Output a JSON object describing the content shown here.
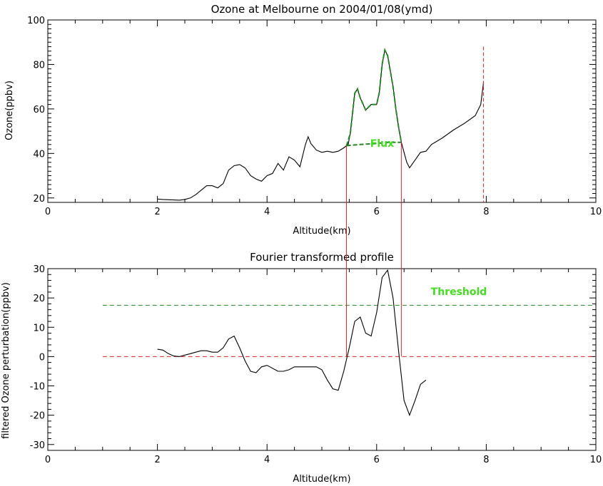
{
  "chart_data": [
    {
      "type": "line",
      "title": "Ozone at Melbourne on 2004/01/08(ymd)",
      "xlabel": "Altitude(km)",
      "ylabel": "Ozone(ppbv)",
      "xlim": [
        0,
        10
      ],
      "ylim": [
        18,
        100
      ],
      "xticks": [
        0,
        2,
        4,
        6,
        8,
        10
      ],
      "yticks": [
        20,
        40,
        60,
        80,
        100
      ],
      "annotation": {
        "text": "Flux",
        "x": 6.1,
        "y": 43,
        "color": "#44dd22"
      },
      "series": [
        {
          "role": "profile",
          "color": "#000000",
          "dash": "none",
          "x": [
            2.0,
            2.1,
            2.2,
            2.3,
            2.4,
            2.5,
            2.6,
            2.7,
            2.8,
            2.9,
            3.0,
            3.1,
            3.2,
            3.3,
            3.4,
            3.5,
            3.6,
            3.7,
            3.8,
            3.9,
            4.0,
            4.1,
            4.2,
            4.3,
            4.4,
            4.5,
            4.6,
            4.7,
            4.75,
            4.8,
            4.9,
            5.0,
            5.1,
            5.2,
            5.3,
            5.4,
            5.48,
            5.52,
            5.6,
            5.65,
            5.7,
            5.8,
            5.9,
            6.0,
            6.05,
            6.1,
            6.15,
            6.2,
            6.3,
            6.35,
            6.4,
            6.45,
            6.55,
            6.6,
            6.7,
            6.8,
            6.9,
            7.0,
            7.2,
            7.4,
            7.6,
            7.8,
            7.9,
            7.95
          ],
          "y": [
            19.5,
            19.3,
            19.2,
            19.1,
            19.0,
            19.3,
            20.0,
            21.5,
            23.5,
            25.5,
            25.5,
            24.5,
            26.5,
            32.5,
            34.5,
            35.0,
            33.5,
            30.0,
            28.5,
            27.5,
            30.0,
            31.0,
            35.5,
            32.5,
            38.5,
            37.0,
            34.0,
            44.0,
            47.5,
            44.5,
            41.5,
            40.5,
            41.0,
            40.5,
            41.0,
            42.5,
            44.0,
            49.0,
            67.0,
            69.0,
            65.0,
            59.5,
            62.0,
            62.0,
            67.5,
            80.0,
            86.5,
            84.0,
            70.0,
            60.0,
            52.0,
            45.0,
            36.0,
            33.5,
            37.0,
            40.5,
            41.0,
            44.0,
            47.0,
            50.5,
            53.5,
            57.0,
            62.0,
            72.0
          ]
        },
        {
          "role": "flux-outline",
          "color": "#228822",
          "dash": "6,3",
          "x": [
            5.45,
            5.52,
            5.6,
            5.65,
            5.7,
            5.8,
            5.9,
            6.0,
            6.05,
            6.1,
            6.15,
            6.2,
            6.3,
            6.35,
            6.4,
            6.45
          ],
          "y": [
            43.5,
            49.0,
            67.0,
            69.0,
            65.0,
            59.5,
            62.0,
            62.0,
            67.5,
            80.0,
            86.5,
            84.0,
            70.0,
            60.0,
            52.0,
            45.0
          ]
        },
        {
          "role": "flux-base",
          "color": "#228822",
          "dash": "6,3",
          "x": [
            5.45,
            5.7,
            6.0,
            6.2,
            6.45
          ],
          "y": [
            43.5,
            44.0,
            44.5,
            45.0,
            45.0
          ]
        }
      ],
      "vlines": [
        {
          "x": 5.45,
          "y0": 18,
          "y1": 43.5,
          "color": "#dd2222",
          "dash": "none"
        },
        {
          "x": 6.45,
          "y0": 18,
          "y1": 45.0,
          "color": "#dd2222",
          "dash": "none"
        },
        {
          "x": 7.95,
          "y0": 18,
          "y1": 88.0,
          "color": "#dd2222",
          "dash": "5,3"
        }
      ]
    },
    {
      "type": "line",
      "title": "Fourier transformed profile",
      "xlabel": "Altitude(km)",
      "ylabel": "filtered Ozone perturbation(ppbv)",
      "xlim": [
        0,
        10
      ],
      "ylim": [
        -32,
        30
      ],
      "xticks": [
        0,
        2,
        4,
        6,
        8,
        10
      ],
      "yticks": [
        -30,
        -20,
        -10,
        0,
        10,
        20,
        30
      ],
      "annotation": {
        "text": "Threshold",
        "x": 7.5,
        "y": 21,
        "color": "#44dd22"
      },
      "series": [
        {
          "role": "filtered",
          "color": "#000000",
          "dash": "none",
          "x": [
            2.0,
            2.1,
            2.2,
            2.3,
            2.4,
            2.5,
            2.6,
            2.7,
            2.8,
            2.9,
            3.0,
            3.1,
            3.2,
            3.3,
            3.4,
            3.5,
            3.6,
            3.7,
            3.8,
            3.9,
            4.0,
            4.1,
            4.2,
            4.3,
            4.4,
            4.5,
            4.6,
            4.7,
            4.8,
            4.9,
            5.0,
            5.1,
            5.2,
            5.3,
            5.4,
            5.5,
            5.6,
            5.7,
            5.8,
            5.9,
            6.0,
            6.1,
            6.2,
            6.3,
            6.4,
            6.5,
            6.6,
            6.7,
            6.8,
            6.9
          ],
          "y": [
            2.5,
            2.2,
            1.0,
            0.2,
            0.0,
            0.5,
            1.0,
            1.5,
            2.0,
            2.0,
            1.5,
            1.5,
            3.0,
            6.0,
            7.0,
            3.0,
            -1.5,
            -5.0,
            -5.5,
            -3.5,
            -3.0,
            -4.0,
            -5.0,
            -5.0,
            -4.5,
            -3.5,
            -3.5,
            -3.5,
            -3.5,
            -3.5,
            -4.5,
            -8.0,
            -11.0,
            -11.5,
            -5.0,
            3.0,
            12.0,
            13.5,
            8.0,
            7.0,
            15.0,
            27.0,
            29.5,
            20.0,
            2.0,
            -15.0,
            -20.0,
            -15.0,
            -9.5,
            -8.0
          ]
        }
      ],
      "hlines": [
        {
          "y": 17.5,
          "x0": 1.0,
          "x1": 10.0,
          "color": "#228822",
          "dash": "6,4"
        },
        {
          "y": 0.0,
          "x0": 1.0,
          "x1": 10.0,
          "color": "#dd2222",
          "dash": "6,4"
        }
      ]
    }
  ]
}
